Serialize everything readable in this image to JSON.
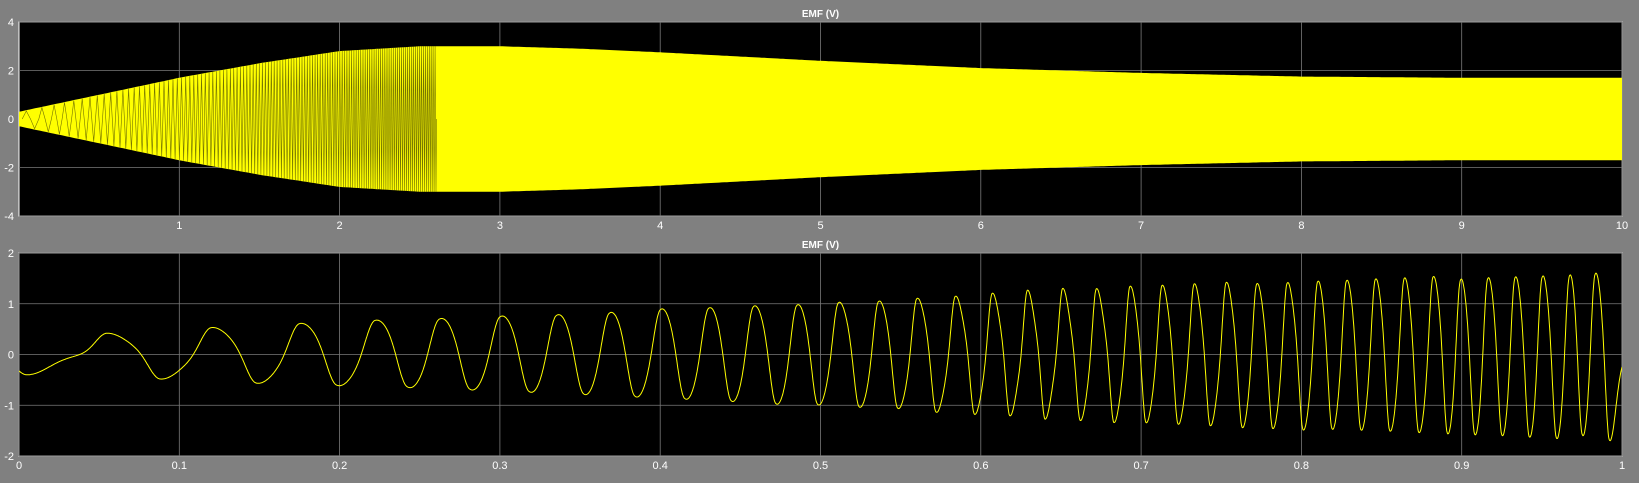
{
  "colors": {
    "background": "#808080",
    "plot_background": "#000000",
    "signal": "#ffff00",
    "grid": "#7a7a7a",
    "text": "#ffffff"
  },
  "chart_data": [
    {
      "type": "line",
      "title": "EMF (V)",
      "xlim": [
        0,
        10
      ],
      "ylim": [
        -4,
        4
      ],
      "x_ticks": [
        1,
        2,
        3,
        4,
        5,
        6,
        7,
        8,
        9,
        10
      ],
      "y_ticks": [
        -4,
        -2,
        0,
        2,
        4
      ],
      "x_tick_labels": [
        "1",
        "2",
        "3",
        "4",
        "5",
        "6",
        "7",
        "8",
        "9",
        "10"
      ],
      "y_tick_labels": [
        "-4",
        "-2",
        "0",
        "2",
        "4"
      ],
      "grid": true,
      "series": [
        {
          "color": "#ffff00",
          "envelope_x": [
            0,
            0.5,
            1,
            1.5,
            2,
            2.5,
            3,
            3.5,
            4,
            5,
            6,
            7,
            8,
            9,
            10
          ],
          "envelope_upper": [
            0.3,
            1.0,
            1.7,
            2.3,
            2.8,
            3.0,
            3.0,
            2.9,
            2.75,
            2.4,
            2.1,
            1.9,
            1.75,
            1.7,
            1.7
          ],
          "envelope_lower": [
            -0.3,
            -1.0,
            -1.7,
            -2.3,
            -2.8,
            -3.0,
            -3.0,
            -2.9,
            -2.75,
            -2.4,
            -2.1,
            -1.9,
            -1.75,
            -1.7,
            -1.7
          ]
        }
      ]
    },
    {
      "type": "line",
      "title": "EMF (V)",
      "xlim": [
        0,
        1
      ],
      "ylim": [
        -2,
        2
      ],
      "x_ticks": [
        0,
        0.1,
        0.2,
        0.3,
        0.4,
        0.5,
        0.6,
        0.7,
        0.8,
        0.9,
        1
      ],
      "y_ticks": [
        -2,
        -1,
        0,
        1,
        2
      ],
      "x_tick_labels": [
        "0",
        "0.1",
        "0.2",
        "0.3",
        "0.4",
        "0.5",
        "0.6",
        "0.7",
        "0.8",
        "0.9",
        "1"
      ],
      "y_tick_labels": [
        "-2",
        "-1",
        "0",
        "1",
        "2"
      ],
      "grid": true,
      "series": [
        {
          "color": "#ffff00",
          "positive_pulses": {
            "t": [
              0.055,
              0.12,
              0.175,
              0.222,
              0.262,
              0.3,
              0.335,
              0.368,
              0.4,
              0.43,
              0.458,
              0.485,
              0.511,
              0.536,
              0.56,
              0.584,
              0.607,
              0.629,
              0.651,
              0.672,
              0.693,
              0.713,
              0.733,
              0.753,
              0.772,
              0.791,
              0.81,
              0.828,
              0.846,
              0.864,
              0.882,
              0.899,
              0.916,
              0.933,
              0.95,
              0.967,
              0.983
            ],
            "peak": [
              0.42,
              0.55,
              0.65,
              0.73,
              0.8,
              0.85,
              0.9,
              0.95,
              1.0,
              1.03,
              1.07,
              1.1,
              1.12,
              1.15,
              1.18,
              1.2,
              1.26,
              1.3,
              1.33,
              1.35,
              1.4,
              1.42,
              1.45,
              1.48,
              1.5,
              1.52,
              1.55,
              1.57,
              1.6,
              1.62,
              1.65,
              1.67,
              1.7,
              1.72,
              1.74,
              1.77,
              1.8
            ]
          },
          "negative_pulses": {
            "t": [
              0.005,
              0.088,
              0.148,
              0.198,
              0.242,
              0.281,
              0.318,
              0.352,
              0.384,
              0.415,
              0.444,
              0.472,
              0.498,
              0.524,
              0.548,
              0.572,
              0.596,
              0.618,
              0.64,
              0.662,
              0.683,
              0.703,
              0.723,
              0.743,
              0.763,
              0.782,
              0.801,
              0.819,
              0.837,
              0.855,
              0.873,
              0.891,
              0.908,
              0.925,
              0.942,
              0.959,
              0.975,
              0.992
            ],
            "peak": [
              -0.4,
              -0.5,
              -0.6,
              -0.68,
              -0.75,
              -0.8,
              -0.85,
              -0.9,
              -0.95,
              -1.0,
              -1.05,
              -1.08,
              -1.1,
              -1.12,
              -1.15,
              -1.2,
              -1.22,
              -1.25,
              -1.3,
              -1.33,
              -1.37,
              -1.4,
              -1.43,
              -1.46,
              -1.5,
              -1.52,
              -1.55,
              -1.58,
              -1.6,
              -1.62,
              -1.65,
              -1.68,
              -1.7,
              -1.72,
              -1.75,
              -1.78,
              -1.8,
              -1.82
            ]
          }
        }
      ]
    }
  ]
}
